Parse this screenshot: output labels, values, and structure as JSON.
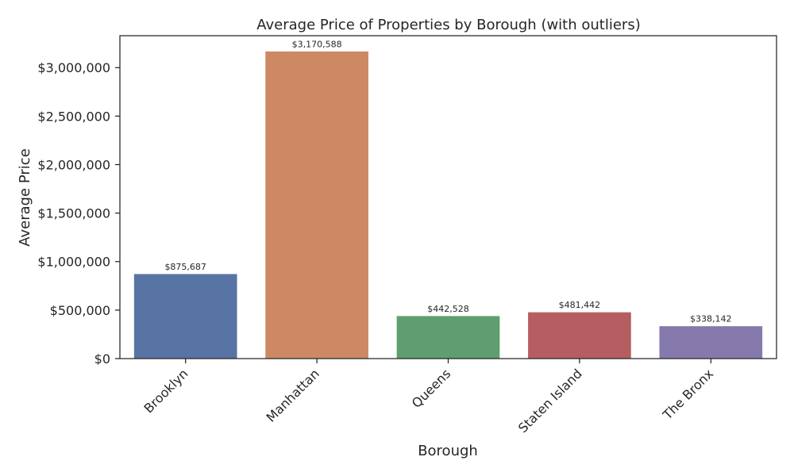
{
  "chart_data": {
    "type": "bar",
    "title": "Average Price of Properties by Borough (with outliers)",
    "xlabel": "Borough",
    "ylabel": "Average Price",
    "categories": [
      "Brooklyn",
      "Manhattan",
      "Queens",
      "Staten Island",
      "The Bronx"
    ],
    "values": [
      875687,
      3170588,
      442528,
      481442,
      338142
    ],
    "data_labels": [
      "$875,687",
      "$3,170,588",
      "$442,528",
      "$481,442",
      "$338,142"
    ],
    "colors": [
      "#5874a4",
      "#cc8963",
      "#5f9e6e",
      "#b55d60",
      "#857aab"
    ],
    "ylim": [
      0,
      3329117
    ],
    "yticks": [
      0,
      500000,
      1000000,
      1500000,
      2000000,
      2500000,
      3000000
    ],
    "ytick_labels": [
      "$0",
      "$500,000",
      "$1,000,000",
      "$1,500,000",
      "$2,000,000",
      "$2,500,000",
      "$3,000,000"
    ],
    "grid": false,
    "legend": "none"
  }
}
